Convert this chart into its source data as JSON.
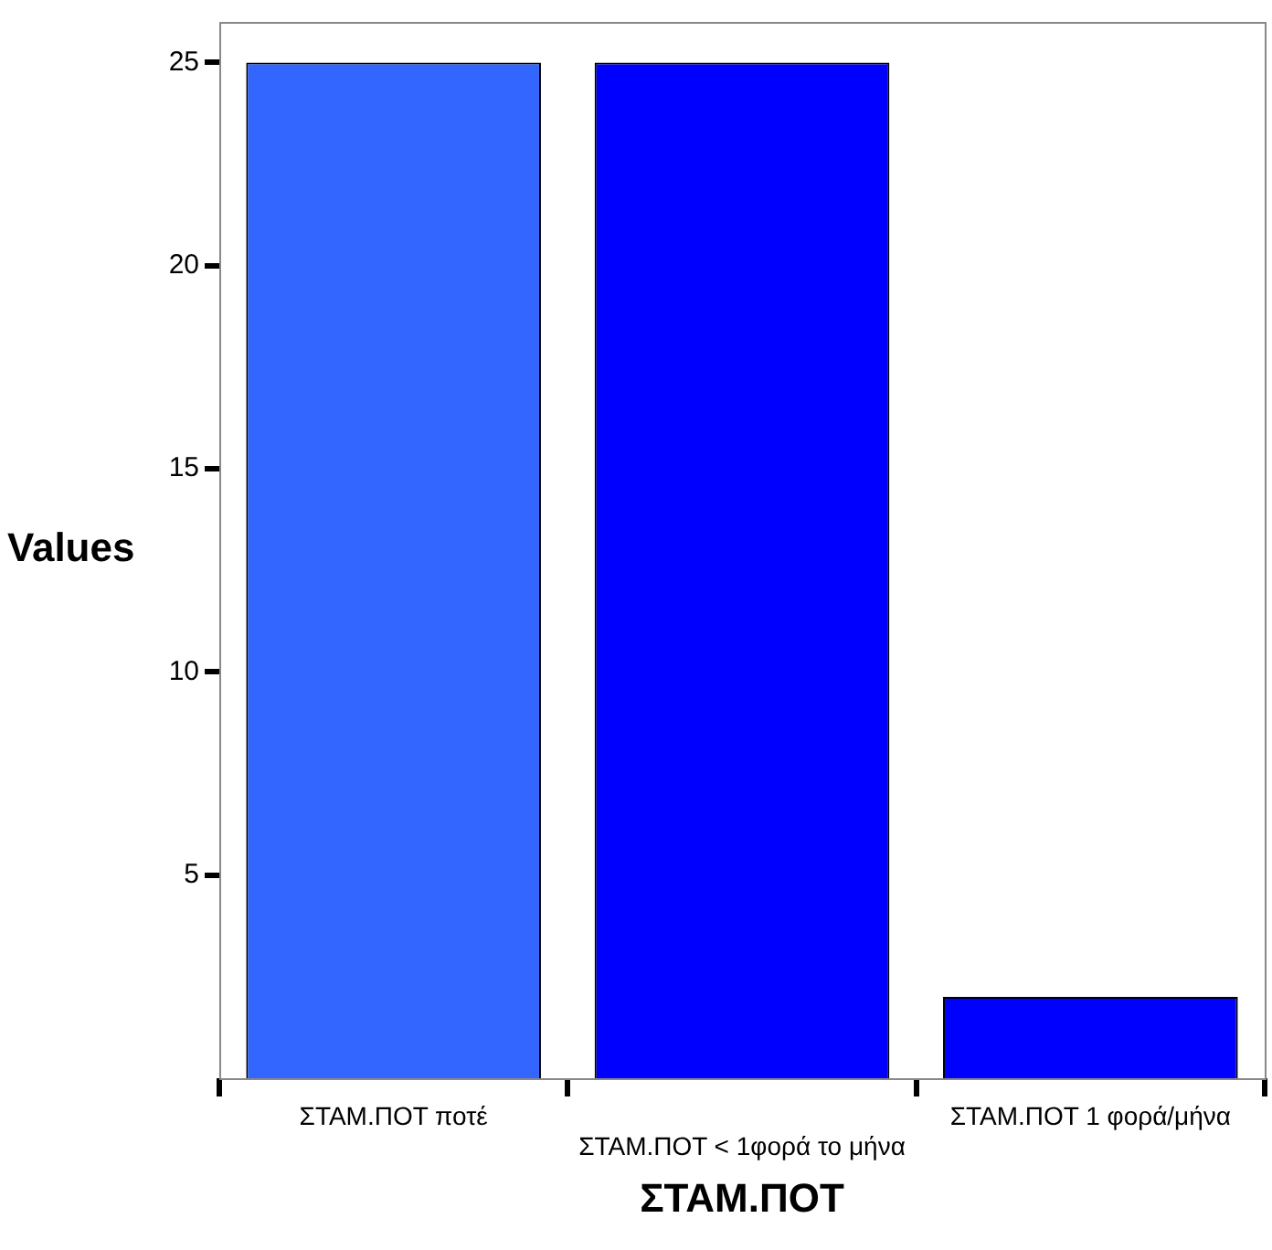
{
  "chart_data": {
    "type": "bar",
    "xlabel": "ΣΤΑΜ.ΠΟΤ",
    "ylabel": "Values",
    "categories": [
      "ΣΤΑΜ.ΠΟΤ ποτέ",
      "ΣΤΑΜ.ΠΟΤ < 1φορά το μήνα",
      "ΣΤΑΜ.ΠΟΤ 1 φορά/μήνα"
    ],
    "values": [
      25,
      25,
      2
    ],
    "colors": [
      "#3366ff",
      "#0000ff",
      "#0000ff"
    ],
    "ylim": [
      0,
      26
    ],
    "yticks": [
      5,
      10,
      15,
      20,
      25
    ],
    "grid": false,
    "legend": false
  }
}
